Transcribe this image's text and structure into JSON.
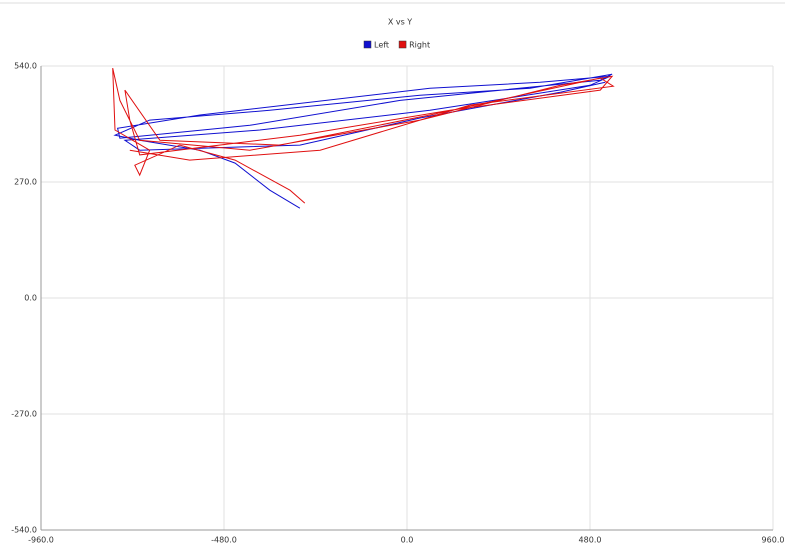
{
  "chart_data": {
    "type": "line",
    "title": "X vs Y",
    "legend": "top",
    "grid": true,
    "xlim": [
      -960,
      960
    ],
    "ylim": [
      -540,
      540
    ],
    "xticks": [
      {
        "value": -960,
        "label": "-960.0"
      },
      {
        "value": -480,
        "label": "-480.0"
      },
      {
        "value": 0,
        "label": "0.0"
      },
      {
        "value": 480,
        "label": "480.0"
      },
      {
        "value": 960,
        "label": "960.0"
      }
    ],
    "yticks": [
      {
        "value": -540,
        "label": "-540.0"
      },
      {
        "value": -270,
        "label": "-270.0"
      },
      {
        "value": 0,
        "label": "0.0"
      },
      {
        "value": 270,
        "label": "270.0"
      },
      {
        "value": 540,
        "label": "540.0"
      }
    ],
    "series": [
      {
        "name": "Left",
        "color": "#1010d0",
        "x": [
          -281,
          -360,
          -451,
          -543,
          -701,
          -766,
          -675,
          -360,
          34,
          323,
          538,
          507,
          192,
          -18,
          -412,
          -753,
          -759,
          -543,
          60,
          349,
          533,
          480,
          60,
          -386,
          -740,
          -701,
          -281,
          34,
          402,
          520
        ],
        "values": [
          209,
          251,
          314,
          344,
          367,
          379,
          414,
          437,
          472,
          488,
          521,
          507,
          479,
          460,
          402,
          372,
          395,
          426,
          488,
          502,
          516,
          495,
          437,
          391,
          367,
          344,
          356,
          419,
          479,
          502
        ]
      },
      {
        "name": "Right",
        "color": "#e01010",
        "x": [
          -268,
          -307,
          -451,
          -596,
          -714,
          -701,
          -675,
          -766,
          -772,
          -753,
          -701,
          -412,
          34,
          402,
          538,
          507,
          113,
          -281,
          -701,
          -727,
          -740,
          -648,
          -333,
          60,
          507,
          541,
          165,
          -228,
          -570,
          -727
        ],
        "values": [
          221,
          251,
          321,
          356,
          309,
          286,
          344,
          391,
          535,
          460,
          367,
          344,
          414,
          495,
          516,
          484,
          437,
          379,
          333,
          414,
          484,
          367,
          356,
          426,
          512,
          493,
          449,
          344,
          321,
          344
        ]
      }
    ]
  }
}
